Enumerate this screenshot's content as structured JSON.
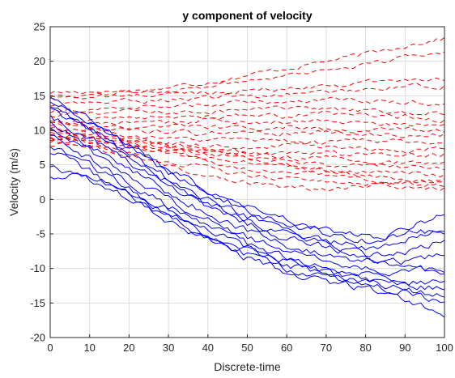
{
  "chart_data": {
    "type": "line",
    "title": "y component of velocity",
    "xlabel": "Discrete-time",
    "ylabel": "Velocity (m/s)",
    "xlim": [
      0,
      100
    ],
    "ylim": [
      -20,
      25
    ],
    "x_ticks": [
      "0",
      "10",
      "20",
      "30",
      "40",
      "50",
      "60",
      "70",
      "80",
      "90",
      "100"
    ],
    "y_ticks": [
      "-20",
      "-15",
      "-10",
      "-5",
      "0",
      "5",
      "10",
      "15",
      "20",
      "25"
    ],
    "grid": true,
    "colors": {
      "dashed_group": "#ff0000",
      "solid_group": "#0000ff",
      "grid": "#dcdcdc"
    },
    "series": [
      {
        "style": "dashed",
        "color": "#ff0000",
        "x": [
          0,
          10,
          20,
          30,
          40,
          50,
          60,
          70,
          80,
          90,
          100
        ],
        "values": [
          15.5,
          15.6,
          15.7,
          16.2,
          17.0,
          18.0,
          19.0,
          20.0,
          21.0,
          22.3,
          23.3
        ]
      },
      {
        "style": "dashed",
        "color": "#ff0000",
        "x": [
          0,
          10,
          20,
          30,
          40,
          50,
          60,
          70,
          80,
          90,
          100
        ],
        "values": [
          14.8,
          15.2,
          15.5,
          15.8,
          16.5,
          17.2,
          18.0,
          18.8,
          19.5,
          20.5,
          21.5
        ]
      },
      {
        "style": "dashed",
        "color": "#ff0000",
        "x": [
          0,
          10,
          20,
          30,
          40,
          50,
          60,
          70,
          80,
          90,
          100
        ],
        "values": [
          15.0,
          14.8,
          15.0,
          15.2,
          15.5,
          15.8,
          16.0,
          16.5,
          17.0,
          17.2,
          17.5
        ]
      },
      {
        "style": "dashed",
        "color": "#ff0000",
        "x": [
          0,
          10,
          20,
          30,
          40,
          50,
          60,
          70,
          80,
          90,
          100
        ],
        "values": [
          13.5,
          14.0,
          14.2,
          14.5,
          14.8,
          15.0,
          15.2,
          15.5,
          16.0,
          16.3,
          16.5
        ]
      },
      {
        "style": "dashed",
        "color": "#ff0000",
        "x": [
          0,
          10,
          20,
          30,
          40,
          50,
          60,
          70,
          80,
          90,
          100
        ],
        "values": [
          12.5,
          13.0,
          13.5,
          13.5,
          13.8,
          14.0,
          14.2,
          14.5,
          14.2,
          14.0,
          14.0
        ]
      },
      {
        "style": "dashed",
        "color": "#ff0000",
        "x": [
          0,
          10,
          20,
          30,
          40,
          50,
          60,
          70,
          80,
          90,
          100
        ],
        "values": [
          12.0,
          12.5,
          12.8,
          12.5,
          12.8,
          13.0,
          13.2,
          13.0,
          12.8,
          12.5,
          12.5
        ]
      },
      {
        "style": "dashed",
        "color": "#ff0000",
        "x": [
          0,
          10,
          20,
          30,
          40,
          50,
          60,
          70,
          80,
          90,
          100
        ],
        "values": [
          11.0,
          11.5,
          12.0,
          11.8,
          12.0,
          12.2,
          12.0,
          12.5,
          12.2,
          12.0,
          11.5
        ]
      },
      {
        "style": "dashed",
        "color": "#ff0000",
        "x": [
          0,
          10,
          20,
          30,
          40,
          50,
          60,
          70,
          80,
          90,
          100
        ],
        "values": [
          10.5,
          11.0,
          11.2,
          11.0,
          11.5,
          11.0,
          11.2,
          11.5,
          11.0,
          10.8,
          11.0
        ]
      },
      {
        "style": "dashed",
        "color": "#ff0000",
        "x": [
          0,
          10,
          20,
          30,
          40,
          50,
          60,
          70,
          80,
          90,
          100
        ],
        "values": [
          10.0,
          10.2,
          10.5,
          10.8,
          10.5,
          10.2,
          10.5,
          10.2,
          10.0,
          10.2,
          10.0
        ]
      },
      {
        "style": "dashed",
        "color": "#ff0000",
        "x": [
          0,
          10,
          20,
          30,
          40,
          50,
          60,
          70,
          80,
          90,
          100
        ],
        "values": [
          9.5,
          9.8,
          10.0,
          9.8,
          9.5,
          9.8,
          9.5,
          9.8,
          9.5,
          9.2,
          9.5
        ]
      },
      {
        "style": "dashed",
        "color": "#ff0000",
        "x": [
          0,
          10,
          20,
          30,
          40,
          50,
          60,
          70,
          80,
          90,
          100
        ],
        "values": [
          9.0,
          9.0,
          8.8,
          8.8,
          8.5,
          8.8,
          8.5,
          8.2,
          8.5,
          8.2,
          8.5
        ]
      },
      {
        "style": "dashed",
        "color": "#ff0000",
        "x": [
          0,
          10,
          20,
          30,
          40,
          50,
          60,
          70,
          80,
          90,
          100
        ],
        "values": [
          8.5,
          8.2,
          8.0,
          8.0,
          7.8,
          7.5,
          7.8,
          7.5,
          7.2,
          7.0,
          7.5
        ]
      },
      {
        "style": "dashed",
        "color": "#ff0000",
        "x": [
          0,
          10,
          20,
          30,
          40,
          50,
          60,
          70,
          80,
          90,
          100
        ],
        "values": [
          8.0,
          7.8,
          7.5,
          7.2,
          7.0,
          6.8,
          6.5,
          6.8,
          6.5,
          6.2,
          6.5
        ]
      },
      {
        "style": "dashed",
        "color": "#ff0000",
        "x": [
          0,
          10,
          20,
          30,
          40,
          50,
          60,
          70,
          80,
          90,
          100
        ],
        "values": [
          9.5,
          9.0,
          8.5,
          8.0,
          7.0,
          6.5,
          6.0,
          6.0,
          5.5,
          5.2,
          5.5
        ]
      },
      {
        "style": "dashed",
        "color": "#ff0000",
        "x": [
          0,
          10,
          20,
          30,
          40,
          50,
          60,
          70,
          80,
          90,
          100
        ],
        "values": [
          10.5,
          9.5,
          8.5,
          7.5,
          6.5,
          6.0,
          5.5,
          5.0,
          5.2,
          4.8,
          4.5
        ]
      },
      {
        "style": "dashed",
        "color": "#ff0000",
        "x": [
          0,
          10,
          20,
          30,
          40,
          50,
          60,
          70,
          80,
          90,
          100
        ],
        "values": [
          9.0,
          8.5,
          7.5,
          7.0,
          6.0,
          5.5,
          4.8,
          4.2,
          4.0,
          3.8,
          3.5
        ]
      },
      {
        "style": "dashed",
        "color": "#ff0000",
        "x": [
          0,
          10,
          20,
          30,
          40,
          50,
          60,
          70,
          80,
          90,
          100
        ],
        "values": [
          11.5,
          10.5,
          9.0,
          8.0,
          7.0,
          6.0,
          5.0,
          4.0,
          3.5,
          3.0,
          2.8
        ]
      },
      {
        "style": "dashed",
        "color": "#ff0000",
        "x": [
          0,
          10,
          20,
          30,
          40,
          50,
          60,
          70,
          80,
          90,
          100
        ],
        "values": [
          10.0,
          9.0,
          8.0,
          7.0,
          5.5,
          4.5,
          4.0,
          3.5,
          2.8,
          2.2,
          2.0
        ]
      },
      {
        "style": "dashed",
        "color": "#ff0000",
        "x": [
          0,
          10,
          20,
          30,
          40,
          50,
          60,
          70,
          80,
          90,
          100
        ],
        "values": [
          8.5,
          7.5,
          6.5,
          5.5,
          4.5,
          3.5,
          3.0,
          2.5,
          2.2,
          1.8,
          1.5
        ]
      },
      {
        "style": "dashed",
        "color": "#ff0000",
        "x": [
          0,
          10,
          20,
          30,
          40,
          50,
          60,
          70,
          80,
          90,
          100
        ],
        "values": [
          9.0,
          8.0,
          6.5,
          5.0,
          3.5,
          2.5,
          1.8,
          1.2,
          2.0,
          2.5,
          3.0
        ]
      },
      {
        "style": "solid",
        "color": "#0000ff",
        "x": [
          0,
          10,
          20,
          30,
          40,
          50,
          60,
          70,
          80,
          90,
          100
        ],
        "values": [
          14.0,
          11.0,
          7.5,
          4.0,
          1.0,
          -1.5,
          -3.5,
          -5.0,
          -6.0,
          -4.5,
          -2.0
        ]
      },
      {
        "style": "solid",
        "color": "#0000ff",
        "x": [
          0,
          10,
          20,
          30,
          40,
          50,
          60,
          70,
          80,
          90,
          100
        ],
        "values": [
          13.0,
          10.0,
          6.5,
          3.0,
          0.0,
          -2.5,
          -4.5,
          -6.0,
          -7.0,
          -6.0,
          -4.0
        ]
      },
      {
        "style": "solid",
        "color": "#0000ff",
        "x": [
          0,
          10,
          20,
          30,
          40,
          50,
          60,
          70,
          80,
          90,
          100
        ],
        "values": [
          12.0,
          9.0,
          5.5,
          2.0,
          -1.0,
          -3.5,
          -5.5,
          -7.0,
          -8.0,
          -7.5,
          -6.0
        ]
      },
      {
        "style": "solid",
        "color": "#0000ff",
        "x": [
          0,
          10,
          20,
          30,
          40,
          50,
          60,
          70,
          80,
          90,
          100
        ],
        "values": [
          11.0,
          8.0,
          4.5,
          1.0,
          -2.0,
          -4.5,
          -6.5,
          -8.0,
          -9.0,
          -9.0,
          -8.0
        ]
      },
      {
        "style": "solid",
        "color": "#0000ff",
        "x": [
          0,
          10,
          20,
          30,
          40,
          50,
          60,
          70,
          80,
          90,
          100
        ],
        "values": [
          10.0,
          7.0,
          3.5,
          0.0,
          -3.0,
          -5.5,
          -7.5,
          -9.0,
          -10.0,
          -10.5,
          -10.0
        ]
      },
      {
        "style": "solid",
        "color": "#0000ff",
        "x": [
          0,
          10,
          20,
          30,
          40,
          50,
          60,
          70,
          80,
          90,
          100
        ],
        "values": [
          9.0,
          6.0,
          2.5,
          -1.0,
          -4.0,
          -6.5,
          -8.5,
          -10.0,
          -11.0,
          -12.0,
          -12.0
        ]
      },
      {
        "style": "solid",
        "color": "#0000ff",
        "x": [
          0,
          10,
          20,
          30,
          40,
          50,
          60,
          70,
          80,
          90,
          100
        ],
        "values": [
          8.0,
          5.0,
          1.5,
          -2.0,
          -5.0,
          -7.5,
          -9.5,
          -11.0,
          -12.0,
          -13.0,
          -14.0
        ]
      },
      {
        "style": "solid",
        "color": "#0000ff",
        "x": [
          0,
          10,
          20,
          30,
          40,
          50,
          60,
          70,
          80,
          90,
          100
        ],
        "values": [
          7.0,
          4.0,
          0.5,
          -3.0,
          -6.0,
          -8.5,
          -10.5,
          -12.0,
          -13.0,
          -14.5,
          -16.5
        ]
      },
      {
        "style": "solid",
        "color": "#0000ff",
        "x": [
          0,
          10,
          20,
          30,
          40,
          50,
          60,
          70,
          80,
          90,
          100
        ],
        "values": [
          5.0,
          3.0,
          0.0,
          -2.5,
          -5.5,
          -8.0,
          -10.0,
          -11.5,
          -12.5,
          -13.5,
          -15.0
        ]
      },
      {
        "style": "solid",
        "color": "#0000ff",
        "x": [
          0,
          10,
          20,
          30,
          40,
          50,
          60,
          70,
          80,
          90,
          100
        ],
        "values": [
          3.5,
          3.5,
          1.0,
          -1.5,
          -4.5,
          -7.0,
          -9.0,
          -10.5,
          -11.5,
          -12.5,
          -13.0
        ]
      },
      {
        "style": "solid",
        "color": "#0000ff",
        "x": [
          0,
          10,
          20,
          30,
          40,
          50,
          60,
          70,
          80,
          90,
          100
        ],
        "values": [
          15.0,
          12.0,
          8.0,
          4.5,
          1.5,
          -1.0,
          -3.0,
          -4.5,
          -5.5,
          -5.0,
          -4.5
        ]
      },
      {
        "style": "solid",
        "color": "#0000ff",
        "x": [
          0,
          10,
          20,
          30,
          40,
          50,
          60,
          70,
          80,
          90,
          100
        ],
        "values": [
          13.5,
          10.5,
          6.0,
          2.5,
          -0.5,
          -3.0,
          -5.0,
          -6.5,
          -8.5,
          -9.5,
          -11.0
        ]
      }
    ]
  }
}
